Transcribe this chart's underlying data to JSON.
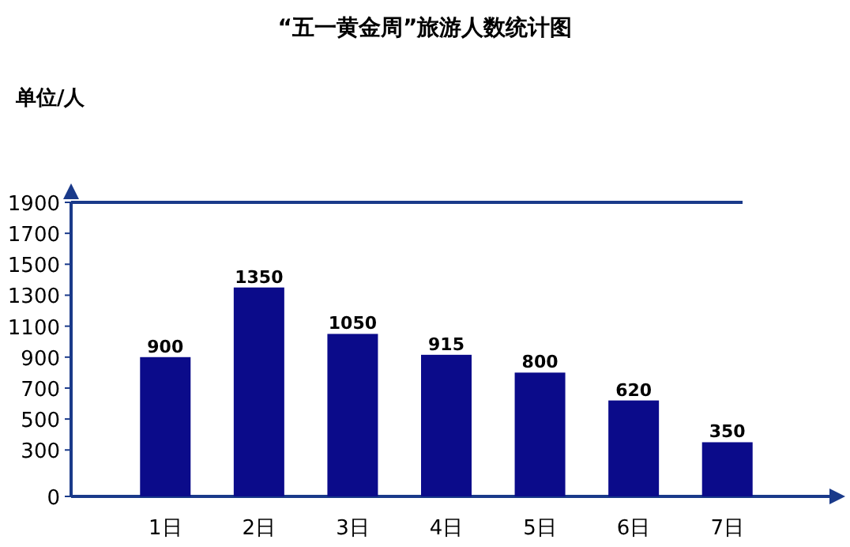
{
  "chart_data": {
    "type": "bar",
    "title": "“五一黄金周”旅游人数统计图",
    "ylabel": "单位/人",
    "categories": [
      "1日",
      "2日",
      "3日",
      "4日",
      "5日",
      "6日",
      "7日"
    ],
    "values": [
      900,
      1350,
      1050,
      915,
      800,
      620,
      350
    ],
    "color": "#0b0b8a",
    "data_labels": true,
    "ylim": [
      0,
      1900
    ],
    "yticks": [
      0,
      300,
      500,
      700,
      900,
      1100,
      1300,
      1500,
      1700,
      1900
    ]
  }
}
